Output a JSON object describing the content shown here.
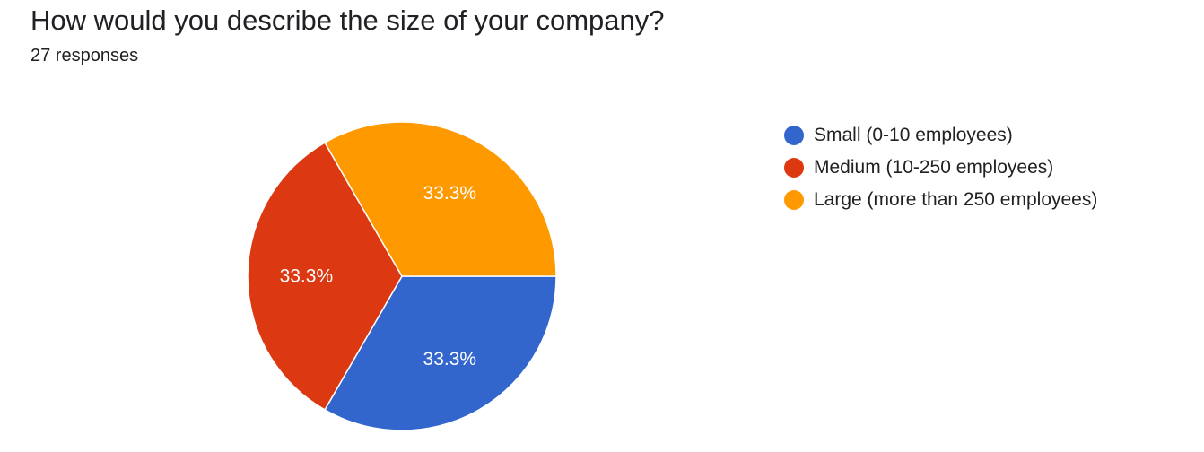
{
  "header": {
    "question": "How would you describe the size of your company?",
    "responses": "27 responses"
  },
  "chart_data": {
    "type": "pie",
    "title": "How would you describe the size of your company?",
    "slices": [
      {
        "label": "Small (0-10 employees)",
        "value": 33.3,
        "value_label": "33.3%",
        "color": "#3366cc"
      },
      {
        "label": "Medium (10-250 employees)",
        "value": 33.3,
        "value_label": "33.3%",
        "color": "#dc3912"
      },
      {
        "label": "Large (more than 250 employees)",
        "value": 33.3,
        "value_label": "33.3%",
        "color": "#ff9900"
      }
    ],
    "legend_position": "right"
  }
}
